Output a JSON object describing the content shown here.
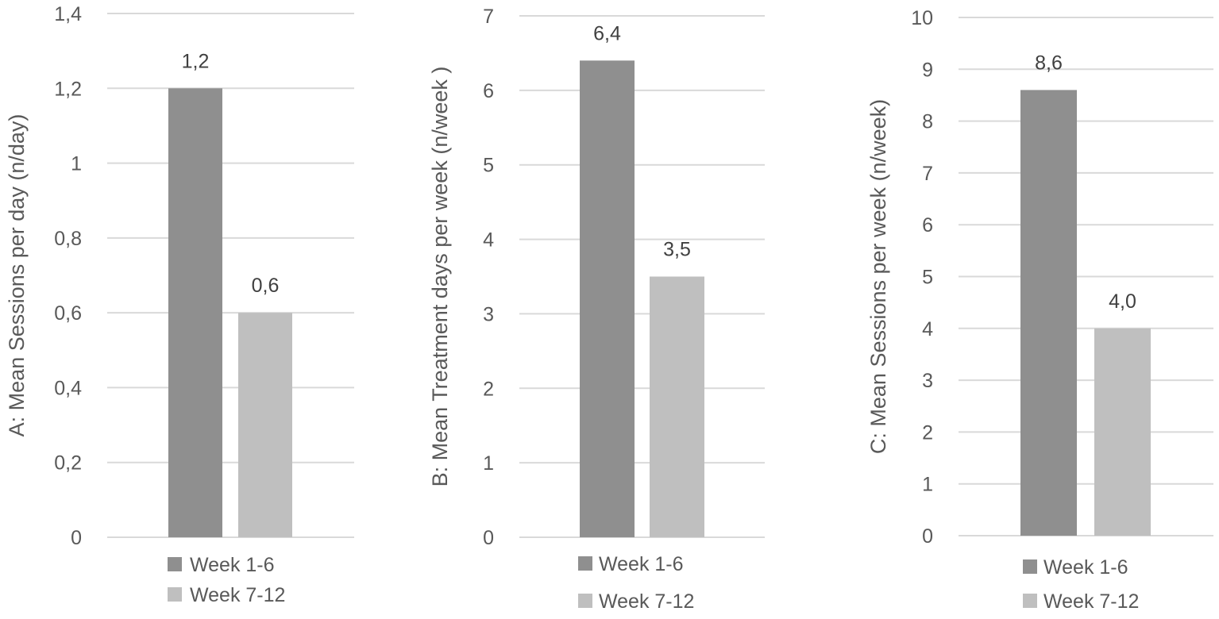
{
  "chart_data": [
    {
      "type": "bar",
      "ylabel": "A: Mean Sessions per day (n/day)",
      "categories": [
        "Week 1-6",
        "Week 7-12"
      ],
      "values": [
        1.2,
        0.6
      ],
      "data_labels": [
        "1,2",
        "0,6"
      ],
      "ylim": [
        0,
        1.4
      ],
      "yticks": [
        "0",
        "0,2",
        "0,4",
        "0,6",
        "0,8",
        "1",
        "1,2",
        "1,4"
      ],
      "grid": true,
      "legend": "bottom",
      "legend_entries": [
        "Week 1-6",
        "Week 7-12"
      ],
      "colors": [
        "#8f8f8f",
        "#bfbfbf"
      ]
    },
    {
      "type": "bar",
      "ylabel": "B: Mean Treatment days per week (n/week )",
      "categories": [
        "Week 1-6",
        "Week 7-12"
      ],
      "values": [
        6.4,
        3.5
      ],
      "data_labels": [
        "6,4",
        "3,5"
      ],
      "ylim": [
        0,
        7
      ],
      "yticks": [
        "0",
        "1",
        "2",
        "3",
        "4",
        "5",
        "6",
        "7"
      ],
      "grid": true,
      "legend": "bottom",
      "legend_entries": [
        "Week 1-6",
        "Week 7-12"
      ],
      "colors": [
        "#8f8f8f",
        "#bfbfbf"
      ]
    },
    {
      "type": "bar",
      "ylabel": "C: Mean Sessions per week (n/week)",
      "categories": [
        "Week 1-6",
        "Week 7-12"
      ],
      "values": [
        8.6,
        4.0
      ],
      "data_labels": [
        "8,6",
        "4,0"
      ],
      "ylim": [
        0,
        10
      ],
      "yticks": [
        "0",
        "1",
        "2",
        "3",
        "4",
        "5",
        "6",
        "7",
        "8",
        "9",
        "10"
      ],
      "grid": true,
      "legend": "bottom",
      "legend_entries": [
        "Week 1-6",
        "Week 7-12"
      ],
      "colors": [
        "#8f8f8f",
        "#bfbfbf"
      ]
    }
  ]
}
